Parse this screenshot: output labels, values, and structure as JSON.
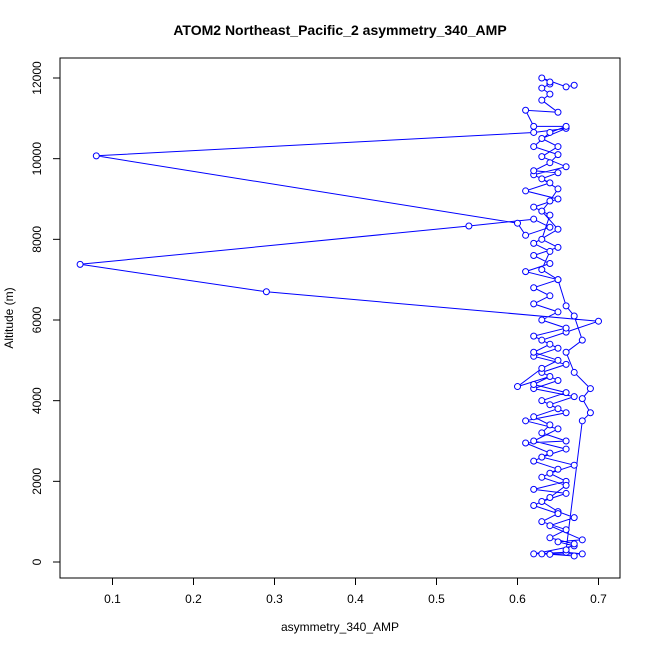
{
  "chart_data": {
    "type": "line",
    "title": "ATOM2 Northeast_Pacific_2 asymmetry_340_AMP",
    "xlabel": "asymmetry_340_AMP",
    "ylabel": "Altitude (m)",
    "xlim": [
      0.05,
      0.7
    ],
    "ylim": [
      0,
      12000
    ],
    "x_ticks": [
      0.1,
      0.2,
      0.3,
      0.4,
      0.5,
      0.6,
      0.7
    ],
    "x_tick_labels": [
      "0.1",
      "0.2",
      "0.3",
      "0.4",
      "0.5",
      "0.6",
      "0.7"
    ],
    "y_ticks": [
      0,
      2000,
      4000,
      6000,
      8000,
      10000,
      12000
    ],
    "y_tick_labels": [
      "0",
      "2000",
      "4000",
      "6000",
      "8000",
      "10000",
      "12000"
    ],
    "grid": false,
    "legend": "none",
    "marker": "open-circle",
    "series": [
      {
        "color": "#0000ff",
        "points": [
          {
            "x": 0.67,
            "y": 150
          },
          {
            "x": 0.64,
            "y": 190
          },
          {
            "x": 0.63,
            "y": 200
          },
          {
            "x": 0.68,
            "y": 200
          },
          {
            "x": 0.66,
            "y": 240
          },
          {
            "x": 0.62,
            "y": 200
          },
          {
            "x": 0.67,
            "y": 400
          },
          {
            "x": 0.65,
            "y": 500
          },
          {
            "x": 0.68,
            "y": 550
          },
          {
            "x": 0.64,
            "y": 900
          },
          {
            "x": 0.67,
            "y": 1100
          },
          {
            "x": 0.65,
            "y": 1250
          },
          {
            "x": 0.63,
            "y": 1500
          },
          {
            "x": 0.66,
            "y": 1700
          },
          {
            "x": 0.62,
            "y": 1800
          },
          {
            "x": 0.66,
            "y": 2000
          },
          {
            "x": 0.64,
            "y": 2200
          },
          {
            "x": 0.67,
            "y": 2400
          },
          {
            "x": 0.63,
            "y": 2600
          },
          {
            "x": 0.66,
            "y": 2800
          },
          {
            "x": 0.62,
            "y": 3000
          },
          {
            "x": 0.65,
            "y": 3300
          },
          {
            "x": 0.61,
            "y": 3500
          },
          {
            "x": 0.66,
            "y": 3700
          },
          {
            "x": 0.64,
            "y": 3900
          },
          {
            "x": 0.67,
            "y": 4100
          },
          {
            "x": 0.62,
            "y": 4300
          },
          {
            "x": 0.65,
            "y": 4500
          },
          {
            "x": 0.63,
            "y": 4700
          },
          {
            "x": 0.66,
            "y": 4900
          },
          {
            "x": 0.62,
            "y": 5100
          },
          {
            "x": 0.65,
            "y": 5300
          },
          {
            "x": 0.63,
            "y": 5500
          },
          {
            "x": 0.66,
            "y": 5700
          },
          {
            "x": 0.7,
            "y": 5970
          },
          {
            "x": 0.29,
            "y": 6700
          },
          {
            "x": 0.06,
            "y": 7380
          },
          {
            "x": 0.54,
            "y": 8330
          },
          {
            "x": 0.62,
            "y": 8500
          },
          {
            "x": 0.64,
            "y": 8300
          },
          {
            "x": 0.61,
            "y": 8100
          },
          {
            "x": 0.6,
            "y": 8400
          },
          {
            "x": 0.08,
            "y": 10070
          },
          {
            "x": 0.62,
            "y": 10650
          },
          {
            "x": 0.66,
            "y": 10750
          },
          {
            "x": 0.63,
            "y": 10500
          },
          {
            "x": 0.65,
            "y": 10300
          },
          {
            "x": 0.63,
            "y": 10050
          },
          {
            "x": 0.66,
            "y": 9800
          },
          {
            "x": 0.62,
            "y": 9600
          },
          {
            "x": 0.64,
            "y": 9400
          },
          {
            "x": 0.61,
            "y": 9200
          },
          {
            "x": 0.65,
            "y": 9000
          },
          {
            "x": 0.62,
            "y": 8800
          },
          {
            "x": 0.64,
            "y": 8600
          },
          {
            "x": 0.63,
            "y": 8000
          },
          {
            "x": 0.65,
            "y": 7800
          },
          {
            "x": 0.62,
            "y": 7600
          },
          {
            "x": 0.64,
            "y": 7400
          },
          {
            "x": 0.61,
            "y": 7200
          },
          {
            "x": 0.65,
            "y": 7000
          },
          {
            "x": 0.62,
            "y": 6800
          },
          {
            "x": 0.64,
            "y": 6600
          },
          {
            "x": 0.62,
            "y": 6400
          },
          {
            "x": 0.65,
            "y": 6200
          },
          {
            "x": 0.63,
            "y": 6000
          },
          {
            "x": 0.66,
            "y": 5800
          },
          {
            "x": 0.62,
            "y": 5600
          },
          {
            "x": 0.64,
            "y": 5400
          },
          {
            "x": 0.62,
            "y": 5200
          },
          {
            "x": 0.65,
            "y": 5000
          },
          {
            "x": 0.63,
            "y": 4800
          },
          {
            "x": 0.6,
            "y": 4350
          },
          {
            "x": 0.64,
            "y": 4600
          },
          {
            "x": 0.62,
            "y": 4400
          },
          {
            "x": 0.66,
            "y": 4200
          },
          {
            "x": 0.63,
            "y": 4000
          },
          {
            "x": 0.65,
            "y": 3800
          },
          {
            "x": 0.62,
            "y": 3600
          },
          {
            "x": 0.64,
            "y": 3400
          },
          {
            "x": 0.63,
            "y": 3200
          },
          {
            "x": 0.66,
            "y": 3000
          },
          {
            "x": 0.61,
            "y": 2950
          },
          {
            "x": 0.64,
            "y": 2700
          },
          {
            "x": 0.62,
            "y": 2500
          },
          {
            "x": 0.65,
            "y": 2300
          },
          {
            "x": 0.63,
            "y": 2100
          },
          {
            "x": 0.66,
            "y": 1900
          },
          {
            "x": 0.64,
            "y": 1600
          },
          {
            "x": 0.62,
            "y": 1400
          },
          {
            "x": 0.65,
            "y": 1200
          },
          {
            "x": 0.63,
            "y": 1000
          },
          {
            "x": 0.66,
            "y": 800
          },
          {
            "x": 0.64,
            "y": 600
          },
          {
            "x": 0.67,
            "y": 450
          },
          {
            "x": 0.66,
            "y": 300
          },
          {
            "x": 0.68,
            "y": 3500
          },
          {
            "x": 0.69,
            "y": 3700
          },
          {
            "x": 0.68,
            "y": 4050
          },
          {
            "x": 0.69,
            "y": 4300
          },
          {
            "x": 0.67,
            "y": 4700
          },
          {
            "x": 0.66,
            "y": 5200
          },
          {
            "x": 0.68,
            "y": 5500
          },
          {
            "x": 0.67,
            "y": 6100
          },
          {
            "x": 0.66,
            "y": 6350
          },
          {
            "x": 0.65,
            "y": 7000
          },
          {
            "x": 0.63,
            "y": 7250
          },
          {
            "x": 0.64,
            "y": 7700
          },
          {
            "x": 0.62,
            "y": 7900
          },
          {
            "x": 0.65,
            "y": 8250
          },
          {
            "x": 0.63,
            "y": 8700
          },
          {
            "x": 0.64,
            "y": 8950
          },
          {
            "x": 0.65,
            "y": 9250
          },
          {
            "x": 0.63,
            "y": 9500
          },
          {
            "x": 0.65,
            "y": 9650
          },
          {
            "x": 0.62,
            "y": 9700
          },
          {
            "x": 0.64,
            "y": 9900
          },
          {
            "x": 0.65,
            "y": 10100
          },
          {
            "x": 0.62,
            "y": 10300
          },
          {
            "x": 0.64,
            "y": 10650
          },
          {
            "x": 0.66,
            "y": 10800
          },
          {
            "x": 0.62,
            "y": 10800
          },
          {
            "x": 0.61,
            "y": 11200
          },
          {
            "x": 0.65,
            "y": 11150
          },
          {
            "x": 0.63,
            "y": 11450
          },
          {
            "x": 0.64,
            "y": 11600
          },
          {
            "x": 0.63,
            "y": 11750
          },
          {
            "x": 0.64,
            "y": 11850
          },
          {
            "x": 0.64,
            "y": 11900
          },
          {
            "x": 0.63,
            "y": 12000
          },
          {
            "x": 0.66,
            "y": 11780
          },
          {
            "x": 0.67,
            "y": 11820
          }
        ]
      }
    ]
  }
}
